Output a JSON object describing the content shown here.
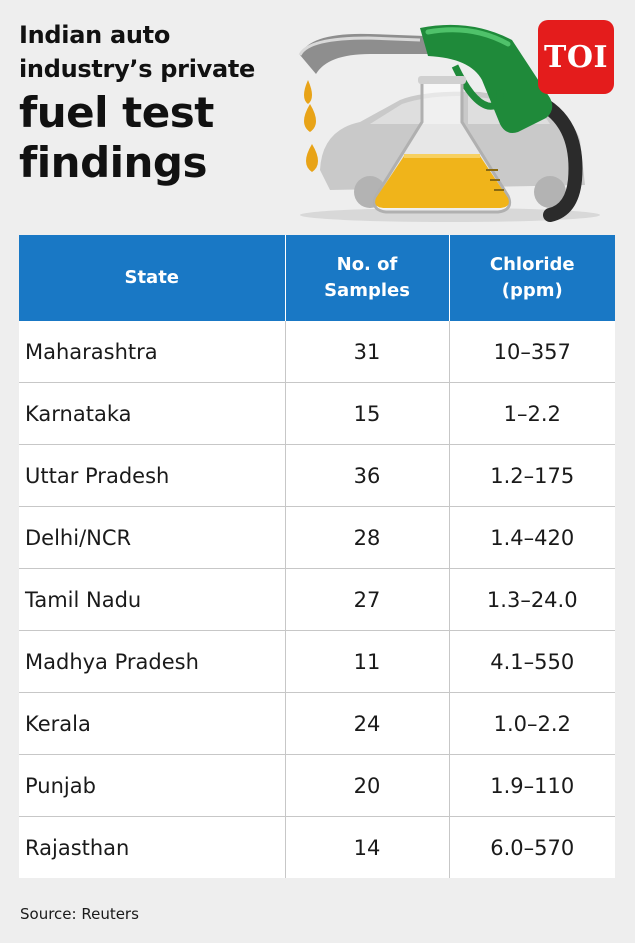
{
  "title": {
    "line1a": "Indian auto",
    "line1b": "industry’s private",
    "line2a": "fuel test",
    "line2b": "findings"
  },
  "logo": {
    "text": "TOI",
    "color": "#e41c1c"
  },
  "illustration": {
    "icons": [
      "fuel-nozzle-icon",
      "flask-icon",
      "car-icon",
      "fuel-drop-icon"
    ]
  },
  "colors": {
    "header_bg": "#1978c5",
    "page_bg": "#eeeeee",
    "row_bg": "#ffffff"
  },
  "table": {
    "headers": {
      "state": "State",
      "samples_1": "No. of",
      "samples_2": "Samples",
      "chloride_1": "Chloride",
      "chloride_2": "(ppm)"
    },
    "rows": [
      {
        "state": "Maharashtra",
        "samples": "31",
        "chloride": "10–357"
      },
      {
        "state": "Karnataka",
        "samples": "15",
        "chloride": "1–2.2"
      },
      {
        "state": "Uttar Pradesh",
        "samples": "36",
        "chloride": "1.2–175"
      },
      {
        "state": "Delhi/NCR",
        "samples": "28",
        "chloride": "1.4–420"
      },
      {
        "state": "Tamil Nadu",
        "samples": "27",
        "chloride": "1.3–24.0"
      },
      {
        "state": "Madhya Pradesh",
        "samples": "11",
        "chloride": "4.1–550"
      },
      {
        "state": "Kerala",
        "samples": "24",
        "chloride": "1.0–2.2"
      },
      {
        "state": "Punjab",
        "samples": "20",
        "chloride": "1.9–110"
      },
      {
        "state": "Rajasthan",
        "samples": "14",
        "chloride": "6.0–570"
      }
    ]
  },
  "source": "Source: Reuters"
}
